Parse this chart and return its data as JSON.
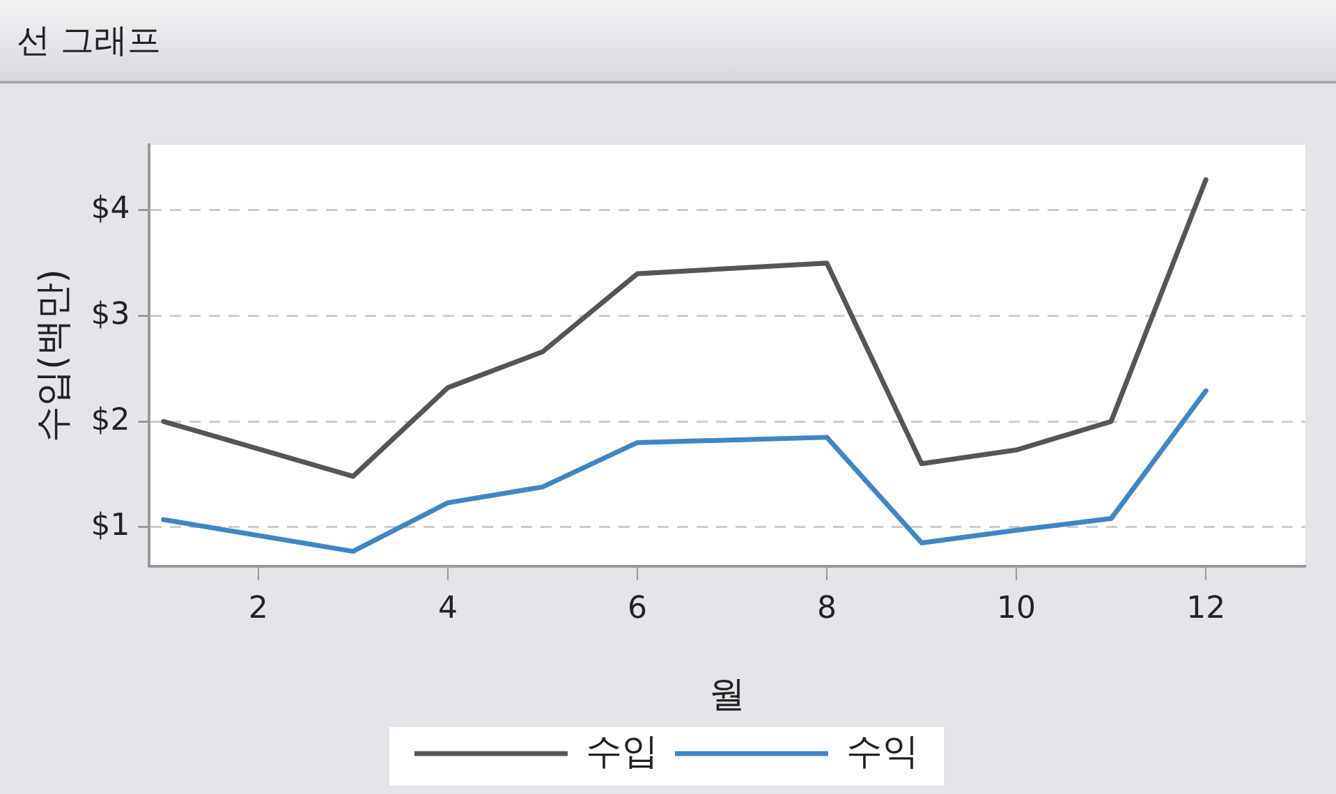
{
  "chart_data": {
    "type": "line",
    "title": "선 그래프",
    "xlabel": "월",
    "ylabel": "수입(백만)",
    "xlim": [
      0.85,
      13.05
    ],
    "xticks": [
      2,
      4,
      6,
      8,
      10,
      12
    ],
    "ylim": [
      0.63,
      4.62
    ],
    "yticks": [
      {
        "value": 1,
        "label": "$1"
      },
      {
        "value": 2,
        "label": "$2"
      },
      {
        "value": 3,
        "label": "$3"
      },
      {
        "value": 4,
        "label": "$4"
      }
    ],
    "grid": "y",
    "legend": "bottom",
    "marker": "none",
    "line_style": "solid",
    "series": [
      {
        "name": "수입",
        "color": "#555555",
        "x": [
          1,
          3,
          4,
          5,
          6,
          8,
          9,
          10,
          11,
          12
        ],
        "values": [
          2.0,
          1.48,
          2.32,
          2.66,
          3.4,
          3.5,
          1.6,
          1.73,
          2.0,
          4.29
        ]
      },
      {
        "name": "수익",
        "color": "#3f86c6",
        "x": [
          1,
          3,
          4,
          5,
          6,
          8,
          9,
          10,
          11,
          12
        ],
        "values": [
          1.07,
          0.77,
          1.23,
          1.38,
          1.8,
          1.85,
          0.85,
          0.97,
          1.08,
          2.29
        ]
      }
    ]
  }
}
